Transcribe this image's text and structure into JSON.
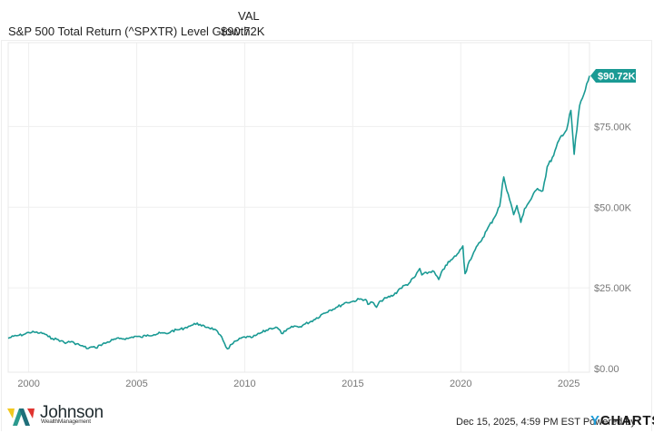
{
  "header": {
    "val_label": "VAL",
    "series_name": "S&P 500 Total Return (^SPXTR) Level Growth",
    "series_value": "$90.72K"
  },
  "colors": {
    "line": "#1a9a94",
    "badge": "#1a9a94",
    "grid": "#efefef",
    "ycharts_y": "#1e9bd7"
  },
  "footer": {
    "logo_name": "Johnson",
    "logo_sub": "WealthManagement",
    "timestamp": "Dec 15, 2025, 4:59 PM EST Powered by",
    "brand_y": "Y",
    "brand_rest": "CHARTS"
  },
  "chart_data": {
    "type": "line",
    "title": "S&P 500 Total Return (^SPXTR) Level Growth",
    "xlabel": "",
    "ylabel": "",
    "xlim": [
      1999.05,
      2025.96
    ],
    "ylim": [
      0,
      101000
    ],
    "grid": true,
    "legend": "top-left",
    "end_label": "$90.72K",
    "x_ticks": [
      2000,
      2005,
      2010,
      2015,
      2020,
      2025
    ],
    "x_tick_labels": [
      "2000",
      "2005",
      "2010",
      "2015",
      "2020",
      "2025"
    ],
    "y_ticks": [
      0,
      25000,
      50000,
      75000
    ],
    "y_tick_labels": [
      "$0.00",
      "$25.00K",
      "$50.00K",
      "$75.00K"
    ],
    "series": [
      {
        "name": "S&P 500 Total Return (^SPXTR) Level Growth",
        "x": [
          1999.05,
          1999.3,
          1999.55,
          1999.8,
          2000.0,
          2000.25,
          2000.5,
          2000.7,
          2000.9,
          2001.1,
          2001.3,
          2001.5,
          2001.7,
          2001.85,
          2002.1,
          2002.35,
          2002.55,
          2002.75,
          2002.9,
          2003.1,
          2003.3,
          2003.6,
          2003.9,
          2004.2,
          2004.6,
          2004.9,
          2005.2,
          2005.5,
          2005.8,
          2006.1,
          2006.4,
          2006.6,
          2006.9,
          2007.2,
          2007.4,
          2007.6,
          2007.8,
          2008.0,
          2008.3,
          2008.6,
          2008.8,
          2009.0,
          2009.2,
          2009.4,
          2009.7,
          2010.0,
          2010.3,
          2010.5,
          2010.8,
          2011.2,
          2011.5,
          2011.7,
          2011.9,
          2012.3,
          2012.5,
          2012.8,
          2013.2,
          2013.6,
          2013.9,
          2014.3,
          2014.7,
          2014.9,
          2015.3,
          2015.6,
          2015.7,
          2015.9,
          2016.1,
          2016.3,
          2016.6,
          2016.9,
          2017.2,
          2017.6,
          2017.9,
          2018.1,
          2018.2,
          2018.7,
          2018.98,
          2019.3,
          2019.6,
          2019.9,
          2020.1,
          2020.2,
          2020.4,
          2020.6,
          2020.9,
          2021.2,
          2021.5,
          2021.8,
          2021.99,
          2022.2,
          2022.45,
          2022.6,
          2022.78,
          2022.95,
          2023.2,
          2023.55,
          2023.8,
          2024.0,
          2024.3,
          2024.6,
          2024.9,
          2025.1,
          2025.25,
          2025.5,
          2025.7,
          2025.96
        ],
        "values": [
          9400,
          10000,
          10300,
          10600,
          11200,
          11300,
          11000,
          10900,
          9900,
          9300,
          9100,
          8600,
          7800,
          8400,
          8000,
          7300,
          6800,
          6200,
          6700,
          6400,
          7300,
          8000,
          8900,
          9300,
          9300,
          10000,
          9700,
          10400,
          10500,
          11000,
          10800,
          11600,
          12000,
          12500,
          13100,
          13500,
          14100,
          13200,
          12800,
          12200,
          10700,
          8700,
          6100,
          7500,
          8900,
          9800,
          9600,
          10200,
          11200,
          12500,
          12700,
          10900,
          11600,
          13200,
          12800,
          13800,
          15100,
          16900,
          18000,
          19100,
          20500,
          20600,
          21500,
          21400,
          19900,
          20600,
          19000,
          21000,
          22000,
          22800,
          24900,
          26400,
          28600,
          31000,
          29000,
          30300,
          27600,
          32000,
          33800,
          35900,
          38000,
          29400,
          33400,
          36000,
          39200,
          42800,
          46200,
          50300,
          59400,
          54000,
          47700,
          50500,
          45300,
          49500,
          52000,
          55800,
          55100,
          62500,
          66000,
          71600,
          74000,
          80000,
          66400,
          81500,
          85000,
          90720
        ]
      }
    ]
  }
}
